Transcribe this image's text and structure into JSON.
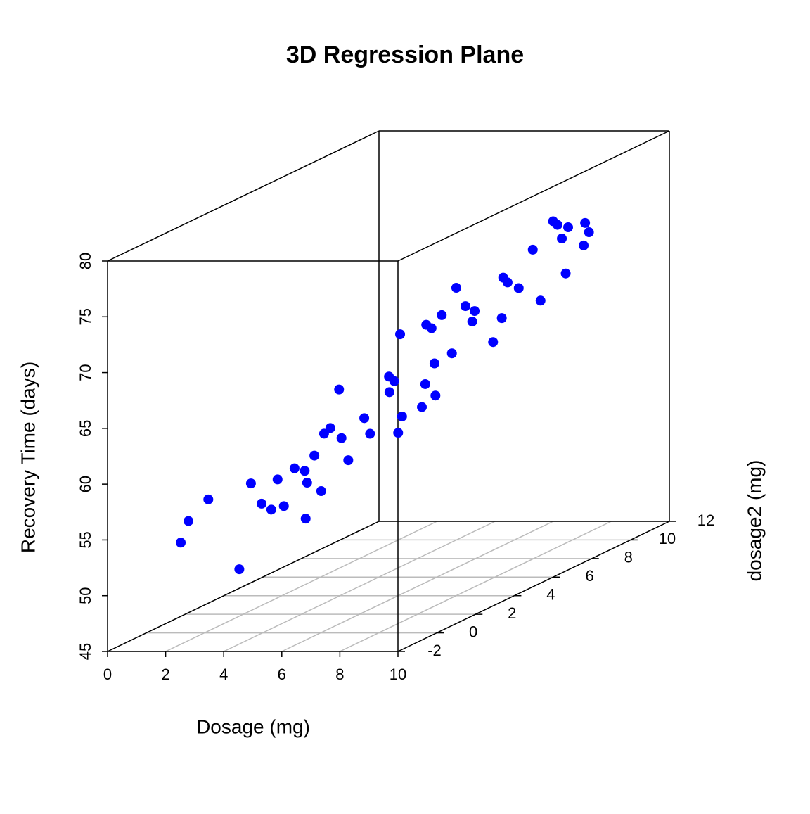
{
  "chart_data": {
    "type": "scatter3d",
    "title": "3D Regression Plane",
    "xlabel": "Dosage (mg)",
    "ylabel": "dosage2 (mg)",
    "zlabel": "Recovery Time (days)",
    "color": "#0000ff",
    "grid": true,
    "xlim": [
      0,
      10
    ],
    "xticks": [
      0,
      2,
      4,
      6,
      8,
      10
    ],
    "ylim": [
      -2,
      12
    ],
    "yticks": [
      -2,
      0,
      2,
      4,
      6,
      8,
      10,
      12
    ],
    "zlim": [
      45,
      80
    ],
    "zticks": [
      45,
      50,
      55,
      60,
      65,
      70,
      75,
      80
    ],
    "x": [
      0.71,
      0.87,
      1.28,
      1.92,
      2.16,
      2.38,
      2.58,
      2.71,
      2.84,
      3.06,
      3.27,
      3.32,
      3.29,
      3.47,
      3.61,
      3.67,
      3.8,
      3.98,
      4.03,
      4.17,
      4.5,
      4.62,
      5.01,
      5.02,
      5.12,
      5.2,
      5.24,
      5.28,
      5.69,
      5.76,
      5.78,
      5.89,
      5.95,
      5.97,
      6.1,
      6.31,
      6.4,
      6.59,
      6.73,
      6.78,
      7.16,
      7.34,
      7.37,
      7.46,
      7.69,
      7.98,
      8.14,
      8.4,
      8.49,
      8.58,
      8.66,
      8.71,
      9.03,
      9.06,
      9.14
    ],
    "y": [
      0.71,
      0.87,
      1.28,
      1.92,
      2.16,
      2.38,
      2.58,
      2.71,
      2.84,
      3.06,
      3.27,
      3.32,
      3.29,
      3.47,
      3.61,
      3.67,
      3.8,
      3.98,
      4.03,
      4.17,
      4.5,
      4.62,
      5.01,
      5.02,
      5.12,
      5.2,
      5.24,
      5.28,
      5.69,
      5.76,
      5.78,
      5.89,
      5.95,
      5.97,
      6.1,
      6.31,
      6.4,
      6.59,
      6.73,
      6.78,
      7.16,
      7.34,
      7.37,
      7.46,
      7.69,
      7.98,
      8.14,
      8.4,
      8.49,
      8.58,
      8.66,
      8.71,
      9.03,
      9.06,
      9.14
    ],
    "z": [
      52.5,
      54.3,
      55.9,
      49.1,
      56.6,
      54.6,
      53.9,
      56.5,
      54.0,
      57.2,
      56.8,
      55.7,
      52.5,
      58.0,
      54.7,
      59.8,
      60.2,
      63.5,
      59.1,
      57.0,
      60.5,
      59.0,
      63.8,
      62.4,
      63.3,
      58.6,
      67.4,
      60.0,
      60.5,
      62.5,
      67.8,
      67.4,
      64.2,
      61.3,
      68.4,
      64.8,
      70.6,
      68.8,
      67.3,
      68.2,
      65.1,
      67.1,
      70.7,
      70.2,
      69.5,
      72.7,
      68.0,
      74.9,
      74.5,
      73.2,
      70.0,
      74.1,
      72.2,
      74.2,
      73.3
    ]
  }
}
